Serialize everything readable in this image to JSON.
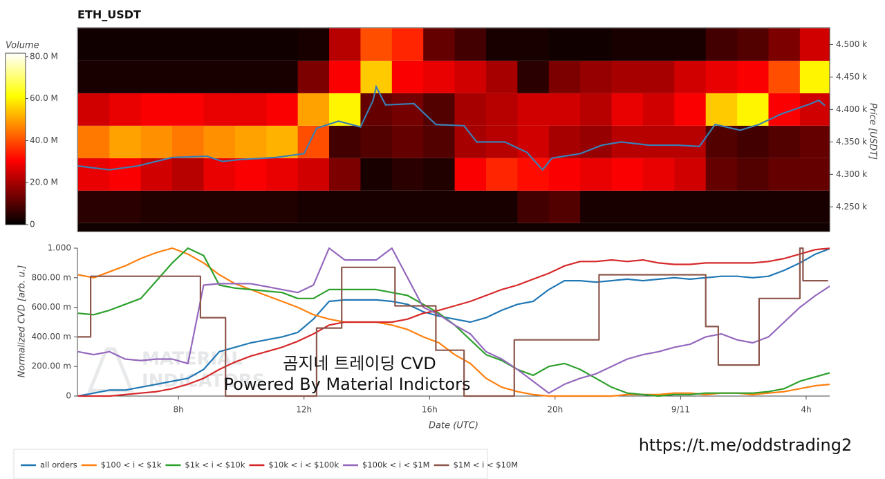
{
  "chart_data": [
    {
      "type": "heatmap",
      "title": "ETH_USDT",
      "x": [
        5.3,
        6.3,
        7.3,
        8.3,
        9.3,
        10.3,
        11.3,
        12.3,
        13.3,
        14.3,
        15.3,
        16.3,
        17.3,
        18.3,
        19.3,
        20.3,
        21.3,
        22.3,
        23.3,
        24.3,
        25.3,
        26.3,
        27.3,
        28.3
      ],
      "price_bins": [
        4200,
        4250,
        4300,
        4350,
        4400,
        4450,
        4500
      ],
      "values": [
        [
          2,
          2,
          2,
          2,
          2,
          2,
          2,
          2,
          2,
          2,
          2,
          2,
          2,
          2,
          2,
          2,
          2,
          2,
          2,
          2,
          2,
          2,
          2,
          2
        ],
        [
          5,
          5,
          4,
          4,
          4,
          4,
          4,
          3,
          3,
          3,
          3,
          3,
          3,
          3,
          8,
          10,
          3,
          3,
          3,
          3,
          3,
          3,
          3,
          3
        ],
        [
          28,
          30,
          25,
          22,
          28,
          30,
          28,
          25,
          15,
          3,
          5,
          4,
          30,
          35,
          32,
          30,
          28,
          30,
          28,
          25,
          12,
          10,
          12,
          12
        ],
        [
          45,
          50,
          48,
          45,
          48,
          50,
          52,
          40,
          8,
          10,
          12,
          10,
          20,
          22,
          25,
          20,
          18,
          22,
          22,
          22,
          10,
          8,
          10,
          12
        ],
        [
          25,
          28,
          30,
          30,
          28,
          28,
          30,
          50,
          60,
          12,
          14,
          10,
          20,
          22,
          25,
          25,
          22,
          28,
          25,
          30,
          55,
          60,
          30,
          25
        ],
        [
          3,
          3,
          3,
          3,
          3,
          3,
          3,
          15,
          30,
          55,
          30,
          28,
          25,
          20,
          5,
          15,
          18,
          20,
          20,
          25,
          28,
          30,
          40,
          60
        ],
        [
          2,
          2,
          2,
          2,
          2,
          2,
          2,
          3,
          22,
          40,
          35,
          12,
          8,
          3,
          3,
          2,
          2,
          3,
          3,
          3,
          8,
          10,
          15,
          25
        ]
      ],
      "xlim": [
        4.78,
        28.75
      ],
      "ylim": [
        4212,
        4526
      ],
      "yticks": [
        {
          "value": 4250,
          "label": "4.250 k"
        },
        {
          "value": 4300,
          "label": "4.300 k"
        },
        {
          "value": 4350,
          "label": "4.350 k"
        },
        {
          "value": 4400,
          "label": "4.400 k"
        },
        {
          "value": 4450,
          "label": "4.450 k"
        },
        {
          "value": 4500,
          "label": "4.500 k"
        }
      ],
      "y_label": "Price [USDT]",
      "colorbar": {
        "label": "Volume",
        "lim": [
          0,
          81.6
        ],
        "ticks": [
          {
            "value": 0,
            "label": "0"
          },
          {
            "value": 20,
            "label": "20.0 M"
          },
          {
            "value": 40,
            "label": "40.0 M"
          },
          {
            "value": 60,
            "label": "60.0 M"
          },
          {
            "value": 80,
            "label": "80.0 M"
          }
        ]
      },
      "price": {
        "color": "#3a7fb5",
        "x": [
          4.8,
          5.8,
          6.7,
          7.8,
          8.9,
          9.4,
          10.0,
          11.1,
          12.0,
          12.4,
          13.1,
          13.8,
          14.2,
          14.3,
          14.6,
          15.5,
          16.2,
          17.1,
          17.5,
          18.4,
          19.1,
          19.6,
          19.9,
          20.8,
          21.5,
          22.1,
          23.0,
          23.9,
          24.6,
          25.1,
          25.9,
          26.5,
          27.2,
          28.1,
          28.4,
          28.6
        ],
        "values": [
          4313,
          4307,
          4313,
          4326,
          4328,
          4320,
          4323,
          4326,
          4332,
          4371,
          4382,
          4373,
          4414,
          4435,
          4407,
          4409,
          4377,
          4375,
          4350,
          4350,
          4334,
          4307,
          4325,
          4332,
          4345,
          4350,
          4345,
          4345,
          4343,
          4377,
          4368,
          4377,
          4393,
          4408,
          4414,
          4406
        ]
      }
    },
    {
      "type": "line",
      "x": [
        4.8,
        5.3,
        5.8,
        6.3,
        6.8,
        7.3,
        7.8,
        8.3,
        8.8,
        9.3,
        9.8,
        10.3,
        10.8,
        11.3,
        11.8,
        12.3,
        12.8,
        13.3,
        13.8,
        14.3,
        14.8,
        15.3,
        15.8,
        16.3,
        16.8,
        17.3,
        17.8,
        18.3,
        18.8,
        19.3,
        19.8,
        20.3,
        20.8,
        21.3,
        21.8,
        22.3,
        22.8,
        23.3,
        23.8,
        24.3,
        24.8,
        25.3,
        25.8,
        26.3,
        26.8,
        27.3,
        27.8,
        28.3,
        28.8
      ],
      "series": [
        {
          "name": "all orders",
          "color": "#1f77b4",
          "values": [
            0.0,
            0.02,
            0.04,
            0.04,
            0.06,
            0.08,
            0.1,
            0.12,
            0.18,
            0.3,
            0.33,
            0.36,
            0.38,
            0.4,
            0.43,
            0.52,
            0.64,
            0.65,
            0.65,
            0.65,
            0.64,
            0.62,
            0.57,
            0.54,
            0.52,
            0.5,
            0.53,
            0.58,
            0.62,
            0.64,
            0.72,
            0.78,
            0.78,
            0.77,
            0.78,
            0.79,
            0.78,
            0.79,
            0.8,
            0.79,
            0.8,
            0.81,
            0.81,
            0.8,
            0.81,
            0.85,
            0.9,
            0.96,
            1.0
          ]
        },
        {
          "name": "$100 < i < $1k",
          "color": "#ff7f0e",
          "values": [
            0.82,
            0.8,
            0.84,
            0.88,
            0.93,
            0.97,
            1.0,
            0.96,
            0.9,
            0.82,
            0.76,
            0.72,
            0.68,
            0.64,
            0.6,
            0.55,
            0.52,
            0.5,
            0.5,
            0.5,
            0.48,
            0.45,
            0.4,
            0.36,
            0.28,
            0.22,
            0.12,
            0.06,
            0.03,
            0.01,
            0.0,
            0.0,
            0.0,
            0.0,
            0.0,
            0.01,
            0.01,
            0.01,
            0.02,
            0.02,
            0.01,
            0.02,
            0.02,
            0.01,
            0.02,
            0.03,
            0.05,
            0.07,
            0.08
          ]
        },
        {
          "name": "$1k < i < $10k",
          "color": "#2ca02c",
          "values": [
            0.56,
            0.55,
            0.58,
            0.62,
            0.66,
            0.78,
            0.9,
            1.0,
            0.95,
            0.75,
            0.73,
            0.72,
            0.71,
            0.7,
            0.66,
            0.66,
            0.72,
            0.72,
            0.72,
            0.72,
            0.7,
            0.68,
            0.62,
            0.56,
            0.48,
            0.38,
            0.28,
            0.24,
            0.18,
            0.14,
            0.2,
            0.22,
            0.18,
            0.12,
            0.06,
            0.02,
            0.01,
            0.0,
            0.01,
            0.01,
            0.02,
            0.02,
            0.02,
            0.02,
            0.03,
            0.05,
            0.1,
            0.13,
            0.16
          ]
        },
        {
          "name": "$10k < i < $100k",
          "color": "#d62728",
          "values": [
            0.0,
            0.0,
            0.0,
            0.01,
            0.02,
            0.03,
            0.05,
            0.08,
            0.12,
            0.18,
            0.23,
            0.27,
            0.3,
            0.33,
            0.37,
            0.42,
            0.48,
            0.5,
            0.5,
            0.5,
            0.5,
            0.52,
            0.56,
            0.58,
            0.61,
            0.64,
            0.68,
            0.72,
            0.75,
            0.79,
            0.83,
            0.88,
            0.91,
            0.91,
            0.92,
            0.91,
            0.92,
            0.9,
            0.89,
            0.89,
            0.9,
            0.9,
            0.9,
            0.9,
            0.91,
            0.93,
            0.96,
            0.99,
            1.0
          ]
        },
        {
          "name": "$100k < i < $1M",
          "color": "#9467bd",
          "values": [
            0.3,
            0.28,
            0.3,
            0.25,
            0.24,
            0.25,
            0.25,
            0.22,
            0.75,
            0.76,
            0.76,
            0.76,
            0.74,
            0.72,
            0.7,
            0.75,
            1.0,
            0.92,
            0.92,
            0.92,
            1.0,
            0.8,
            0.6,
            0.55,
            0.48,
            0.42,
            0.3,
            0.25,
            0.18,
            0.1,
            0.02,
            0.08,
            0.12,
            0.15,
            0.2,
            0.25,
            0.28,
            0.3,
            0.33,
            0.35,
            0.4,
            0.42,
            0.38,
            0.36,
            0.4,
            0.5,
            0.6,
            0.68,
            0.75
          ]
        },
        {
          "name": "$1M < i < $10M",
          "color": "#8c564b",
          "x": [
            4.8,
            5.2,
            5.2,
            8.7,
            8.7,
            9.5,
            9.5,
            12.4,
            12.4,
            13.2,
            13.2,
            14.9,
            14.9,
            16.2,
            16.2,
            17.1,
            17.1,
            18.7,
            18.7,
            21.4,
            21.4,
            24.8,
            24.8,
            25.2,
            25.2,
            26.5,
            26.5,
            27.8,
            27.8,
            27.9,
            27.9,
            28.7
          ],
          "values": [
            0.4,
            0.4,
            0.81,
            0.81,
            0.53,
            0.53,
            0.0,
            0.0,
            0.46,
            0.46,
            0.87,
            0.87,
            0.61,
            0.61,
            0.31,
            0.31,
            0.0,
            0.0,
            0.38,
            0.38,
            0.82,
            0.82,
            0.47,
            0.47,
            0.21,
            0.21,
            0.66,
            0.66,
            1.0,
            1.0,
            0.78,
            0.78
          ]
        }
      ],
      "xlim": [
        4.78,
        28.75
      ],
      "xticks": [
        {
          "value": 8,
          "label": "8h"
        },
        {
          "value": 12,
          "label": "12h"
        },
        {
          "value": 16,
          "label": "16h"
        },
        {
          "value": 20,
          "label": "20h"
        },
        {
          "value": 24,
          "label": "9/11"
        },
        {
          "value": 28,
          "label": "4h"
        }
      ],
      "ylim": [
        0,
        1.0
      ],
      "yticks": [
        0,
        {
          "value": 0.2,
          "label": "200.00 m"
        },
        {
          "value": 0.4,
          "label": "400.00 m"
        },
        {
          "value": 0.6,
          "label": "600.00 m"
        },
        {
          "value": 0.8,
          "label": "800.00 m"
        },
        {
          "value": 1.0,
          "label": "1.000"
        }
      ],
      "x_label": "Date (UTC)",
      "y_label": "Normalized CVD [arb. u.]",
      "legend": "bottom-left"
    }
  ],
  "overlay": {
    "caption": "곰지네 트레이딩 CVD",
    "credit": "Powered By Material Indictors",
    "watermark": [
      "MATERIAL",
      "INDICATORS"
    ],
    "link": "https://t.me/oddstrading2"
  }
}
